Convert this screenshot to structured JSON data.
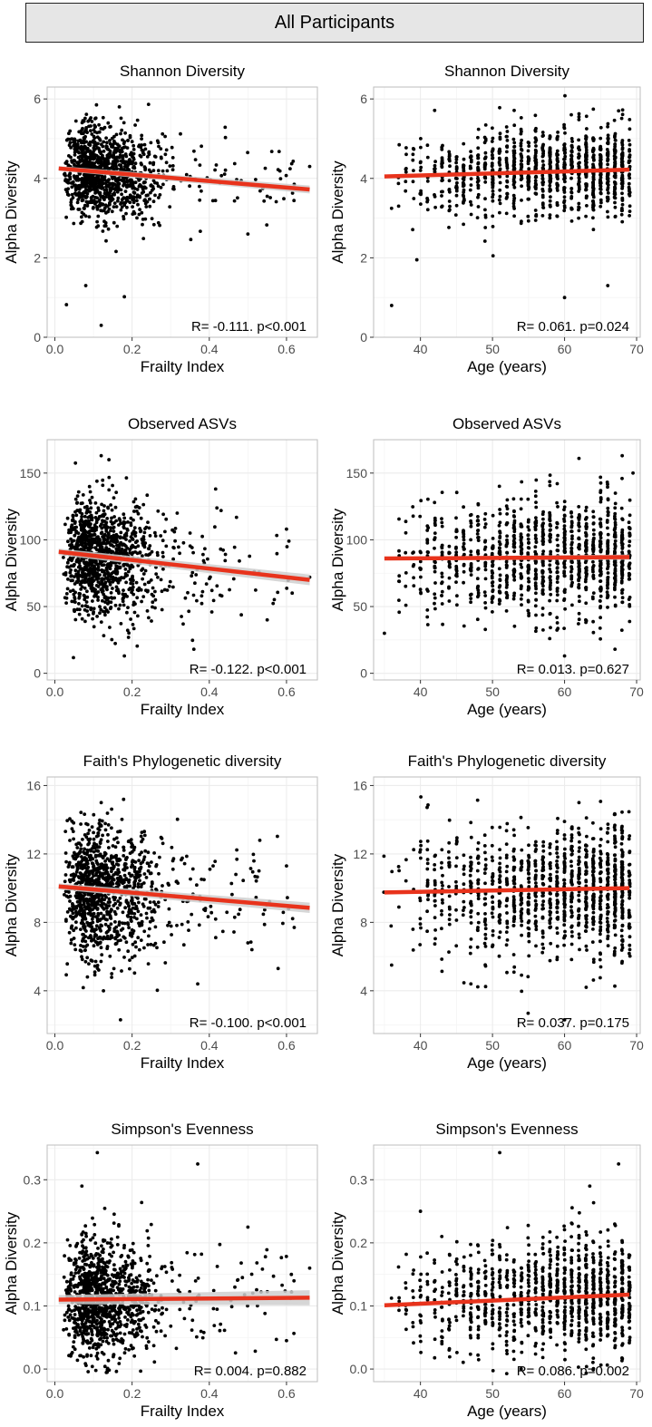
{
  "header": {
    "title": "All Participants"
  },
  "colors": {
    "point": "#000000",
    "fit": "#e8331c",
    "band": "#cfcfcf",
    "grid": "#ececec",
    "frame": "#bdbdbd"
  },
  "chart_data": [
    {
      "type": "scatter",
      "title": "Shannon Diversity",
      "xlabel": "Frailty Index",
      "ylabel": "Alpha Diversity",
      "xlim": [
        -0.02,
        0.68
      ],
      "ylim": [
        0,
        6.3
      ],
      "xticks": [
        0.0,
        0.2,
        0.4,
        0.6
      ],
      "xtick_labels": [
        "0.0",
        "0.2",
        "0.4",
        "0.6"
      ],
      "yticks": [
        0,
        2,
        4,
        6
      ],
      "ytick_labels": [
        "0",
        "2",
        "4",
        "6"
      ],
      "fit": {
        "x": [
          0.01,
          0.66
        ],
        "y": [
          4.25,
          3.72
        ]
      },
      "band": 0.1,
      "annotation": "R= -0.111.  p<0.001",
      "cloud": {
        "dist": "frailty",
        "center": 4.2,
        "sd": 0.55,
        "n": 1150,
        "seed": 11,
        "outliers": [
          [
            0.03,
            0.82
          ],
          [
            0.12,
            0.3
          ],
          [
            0.18,
            1.02
          ],
          [
            0.08,
            1.3
          ],
          [
            0.55,
            3.55
          ],
          [
            0.62,
            3.85
          ],
          [
            0.66,
            4.3
          ],
          [
            0.5,
            2.6
          ]
        ]
      }
    },
    {
      "type": "scatter",
      "title": "Shannon Diversity",
      "xlabel": "Age (years)",
      "ylabel": "Alpha Diversity",
      "xlim": [
        33.5,
        70.5
      ],
      "ylim": [
        0,
        6.3
      ],
      "xticks": [
        40,
        50,
        60,
        70
      ],
      "xtick_labels": [
        "40",
        "50",
        "60",
        "70"
      ],
      "yticks": [
        0,
        2,
        4,
        6
      ],
      "ytick_labels": [
        "0",
        "2",
        "4",
        "6"
      ],
      "fit": {
        "x": [
          35,
          69
        ],
        "y": [
          4.05,
          4.22
        ]
      },
      "band": 0.04,
      "annotation": "R= 0.061.  p=0.024",
      "cloud": {
        "dist": "age",
        "center": 4.15,
        "sd": 0.55,
        "n": 1150,
        "seed": 12,
        "outliers": [
          [
            36,
            0.8
          ],
          [
            60,
            1.0
          ],
          [
            39.5,
            1.95
          ],
          [
            66,
            1.3
          ],
          [
            67.5,
            5.7
          ],
          [
            62,
            5.55
          ]
        ]
      }
    },
    {
      "type": "scatter",
      "title": "Observed ASVs",
      "xlabel": "Frailty Index",
      "ylabel": "Alpha Diversity",
      "xlim": [
        -0.02,
        0.68
      ],
      "ylim": [
        -5,
        175
      ],
      "xticks": [
        0.0,
        0.2,
        0.4,
        0.6
      ],
      "xtick_labels": [
        "0.0",
        "0.2",
        "0.4",
        "0.6"
      ],
      "yticks": [
        0,
        50,
        100,
        150
      ],
      "ytick_labels": [
        "0",
        "50",
        "100",
        "150"
      ],
      "fit": {
        "x": [
          0.01,
          0.66
        ],
        "y": [
          91,
          70
        ]
      },
      "band": 4,
      "annotation": "R= -0.122.  p<0.001",
      "cloud": {
        "dist": "frailty",
        "center": 88,
        "sd": 21,
        "n": 1150,
        "seed": 21,
        "outliers": [
          [
            0.12,
            163
          ],
          [
            0.14,
            160
          ],
          [
            0.18,
            13
          ],
          [
            0.6,
            108
          ],
          [
            0.55,
            40
          ],
          [
            0.36,
            18
          ],
          [
            0.66,
            72
          ]
        ]
      }
    },
    {
      "type": "scatter",
      "title": "Observed ASVs",
      "xlabel": "Age (years)",
      "ylabel": "Alpha Diversity",
      "xlim": [
        33.5,
        70.5
      ],
      "ylim": [
        -5,
        175
      ],
      "xticks": [
        40,
        50,
        60,
        70
      ],
      "xtick_labels": [
        "40",
        "50",
        "60",
        "70"
      ],
      "yticks": [
        0,
        50,
        100,
        150
      ],
      "ytick_labels": [
        "0",
        "50",
        "100",
        "150"
      ],
      "fit": {
        "x": [
          35,
          69
        ],
        "y": [
          86,
          87
        ]
      },
      "band": 2,
      "annotation": "R= 0.013.  p=0.627",
      "cloud": {
        "dist": "age",
        "center": 87,
        "sd": 21,
        "n": 1150,
        "seed": 22,
        "outliers": [
          [
            68,
            163
          ],
          [
            69.5,
            150
          ],
          [
            62,
            161
          ],
          [
            60,
            13
          ],
          [
            67,
            18
          ],
          [
            35,
            30
          ]
        ]
      }
    },
    {
      "type": "scatter",
      "title": "Faith's Phylogenetic diversity",
      "xlabel": "Frailty Index",
      "ylabel": "Alpha Diversity",
      "xlim": [
        -0.02,
        0.68
      ],
      "ylim": [
        1.5,
        16.5
      ],
      "xticks": [
        0.0,
        0.2,
        0.4,
        0.6
      ],
      "xtick_labels": [
        "0.0",
        "0.2",
        "0.4",
        "0.6"
      ],
      "yticks": [
        4,
        8,
        12,
        16
      ],
      "ytick_labels": [
        "4",
        "8",
        "12",
        "16"
      ],
      "fit": {
        "x": [
          0.01,
          0.66
        ],
        "y": [
          10.1,
          8.85
        ]
      },
      "band": 0.3,
      "annotation": "R= -0.100.  p<0.001",
      "cloud": {
        "dist": "frailty",
        "center": 9.9,
        "sd": 1.9,
        "n": 1150,
        "seed": 31,
        "outliers": [
          [
            0.17,
            2.3
          ],
          [
            0.12,
            15.0
          ],
          [
            0.6,
            11.3
          ],
          [
            0.62,
            7.7
          ],
          [
            0.37,
            4.4
          ],
          [
            0.5,
            6.8
          ]
        ]
      }
    },
    {
      "type": "scatter",
      "title": "Faith's Phylogenetic diversity",
      "xlabel": "Age (years)",
      "ylabel": "Alpha Diversity",
      "xlim": [
        33.5,
        70.5
      ],
      "ylim": [
        1.5,
        16.5
      ],
      "xticks": [
        40,
        50,
        60,
        70
      ],
      "xtick_labels": [
        "40",
        "50",
        "60",
        "70"
      ],
      "yticks": [
        4,
        8,
        12,
        16
      ],
      "ytick_labels": [
        "4",
        "8",
        "12",
        "16"
      ],
      "fit": {
        "x": [
          35,
          69
        ],
        "y": [
          9.75,
          10.0
        ]
      },
      "band": 0.1,
      "annotation": "R= 0.037.  p=0.175",
      "cloud": {
        "dist": "age",
        "center": 9.9,
        "sd": 1.9,
        "n": 1150,
        "seed": 32,
        "outliers": [
          [
            60,
            2.3
          ],
          [
            62,
            15.0
          ],
          [
            47,
            4.4
          ],
          [
            63,
            4.2
          ],
          [
            36,
            5.5
          ]
        ]
      }
    },
    {
      "type": "scatter",
      "title": "Simpson's Evenness",
      "xlabel": "Frailty Index",
      "ylabel": "Alpha Diversity",
      "xlim": [
        -0.02,
        0.68
      ],
      "ylim": [
        -0.02,
        0.355
      ],
      "xticks": [
        0.0,
        0.2,
        0.4,
        0.6
      ],
      "xtick_labels": [
        "0.0",
        "0.2",
        "0.4",
        "0.6"
      ],
      "yticks": [
        0.0,
        0.1,
        0.2,
        0.3
      ],
      "ytick_labels": [
        "0.0",
        "0.1",
        "0.2",
        "0.3"
      ],
      "fit": {
        "x": [
          0.01,
          0.66
        ],
        "y": [
          0.11,
          0.113
        ]
      },
      "band": 0.012,
      "annotation": "R= 0.004.  p=0.882",
      "cloud": {
        "dist": "frailty",
        "center": 0.1,
        "sd": 0.045,
        "n": 1150,
        "seed": 41,
        "outliers": [
          [
            0.11,
            0.343
          ],
          [
            0.37,
            0.325
          ],
          [
            0.07,
            0.29
          ],
          [
            0.5,
            0.225
          ],
          [
            0.6,
            0.045
          ],
          [
            0.66,
            0.16
          ]
        ]
      }
    },
    {
      "type": "scatter",
      "title": "Simpson's Evenness",
      "xlabel": "Age (years)",
      "ylabel": "Alpha Diversity",
      "xlim": [
        33.5,
        70.5
      ],
      "ylim": [
        -0.02,
        0.355
      ],
      "xticks": [
        40,
        50,
        60,
        70
      ],
      "xtick_labels": [
        "40",
        "50",
        "60",
        "70"
      ],
      "yticks": [
        0.0,
        0.1,
        0.2,
        0.3
      ],
      "ytick_labels": [
        "0.0",
        "0.1",
        "0.2",
        "0.3"
      ],
      "fit": {
        "x": [
          35,
          69
        ],
        "y": [
          0.101,
          0.118
        ]
      },
      "band": 0.003,
      "annotation": "R= 0.086.  p=0.002",
      "cloud": {
        "dist": "age",
        "center": 0.105,
        "sd": 0.045,
        "n": 1150,
        "seed": 42,
        "outliers": [
          [
            51,
            0.343
          ],
          [
            67.5,
            0.325
          ],
          [
            63.5,
            0.29
          ],
          [
            40,
            0.25
          ]
        ]
      }
    }
  ]
}
